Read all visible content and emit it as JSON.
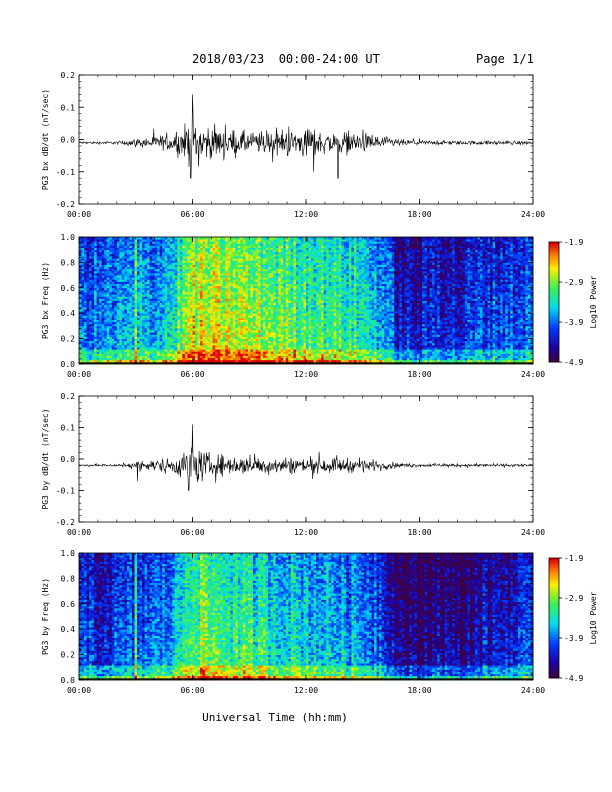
{
  "header": {
    "title": "2018/03/23  00:00-24:00 UT",
    "page": "Page 1/1"
  },
  "xlabel": "Universal Time (hh:mm)",
  "chart_data": [
    {
      "type": "line",
      "ylabel": "PG3 bx dB/dt (nT/sec)",
      "xlim": [
        0,
        24
      ],
      "ylim": [
        -0.2,
        0.2
      ],
      "x_ticks": [
        "00:00",
        "06:00",
        "12:00",
        "18:00",
        "24:00"
      ],
      "y_ticks": [
        "-0.2",
        "-0.1",
        "0.0",
        "0.1",
        "0.2"
      ],
      "baseline": -0.01,
      "envelope": {
        "hours": [
          0,
          2,
          3,
          4,
          5,
          5.5,
          6,
          7,
          8,
          9,
          10,
          11,
          12,
          13,
          14,
          15,
          16,
          17,
          18,
          20,
          22,
          24
        ],
        "amplitude": [
          0.006,
          0.007,
          0.018,
          0.03,
          0.04,
          0.07,
          0.11,
          0.07,
          0.06,
          0.05,
          0.055,
          0.06,
          0.07,
          0.05,
          0.05,
          0.045,
          0.03,
          0.015,
          0.01,
          0.009,
          0.009,
          0.009
        ]
      },
      "peaks": [
        {
          "x": 6.0,
          "y": 0.14
        },
        {
          "x": 5.9,
          "y": -0.12
        },
        {
          "x": 12.4,
          "y": -0.1
        },
        {
          "x": 13.7,
          "y": -0.12
        }
      ]
    },
    {
      "type": "heatmap",
      "ylabel": "PG3 bx Freq (Hz)",
      "xlim": [
        0,
        24
      ],
      "ylim": [
        0,
        1
      ],
      "x_ticks": [
        "00:00",
        "06:00",
        "12:00",
        "18:00",
        "24:00"
      ],
      "y_ticks": [
        "0.0",
        "0.2",
        "0.4",
        "0.6",
        "0.8",
        "1.0"
      ],
      "colorbar": {
        "label": "Log10 Power",
        "range": [
          -4.9,
          -1.9
        ],
        "ticks": [
          "-1.9",
          "-2.9",
          "-3.9",
          "-4.9"
        ]
      },
      "activity": {
        "hours": [
          0,
          2,
          3,
          4,
          5,
          6,
          8,
          10,
          12,
          14,
          15,
          16,
          17,
          18,
          19,
          20,
          21,
          22,
          24
        ],
        "level": [
          0.35,
          0.4,
          0.45,
          0.45,
          0.55,
          0.8,
          0.75,
          0.7,
          0.65,
          0.6,
          0.55,
          0.45,
          0.22,
          0.2,
          0.3,
          0.22,
          0.3,
          0.32,
          0.35
        ]
      }
    },
    {
      "type": "line",
      "ylabel": "PG3 by dB/dt (nT/sec)",
      "xlim": [
        0,
        24
      ],
      "ylim": [
        -0.2,
        0.2
      ],
      "x_ticks": [
        "00:00",
        "06:00",
        "12:00",
        "18:00",
        "24:00"
      ],
      "y_ticks": [
        "-0.2",
        "-0.1",
        "0.0",
        "0.1",
        "0.2"
      ],
      "baseline": -0.02,
      "envelope": {
        "hours": [
          0,
          2,
          3,
          4,
          5,
          5.5,
          6,
          7,
          8,
          9,
          10,
          11,
          12,
          13,
          14,
          15,
          16,
          17,
          18,
          20,
          22,
          24
        ],
        "amplitude": [
          0.005,
          0.006,
          0.02,
          0.03,
          0.04,
          0.06,
          0.09,
          0.055,
          0.045,
          0.04,
          0.04,
          0.04,
          0.035,
          0.035,
          0.035,
          0.03,
          0.02,
          0.01,
          0.008,
          0.007,
          0.007,
          0.007
        ]
      },
      "peaks": [
        {
          "x": 6.0,
          "y": 0.11
        },
        {
          "x": 5.8,
          "y": -0.1
        },
        {
          "x": 3.1,
          "y": -0.07
        }
      ]
    },
    {
      "type": "heatmap",
      "ylabel": "PG3 by Freq (Hz)",
      "xlim": [
        0,
        24
      ],
      "ylim": [
        0,
        1
      ],
      "x_ticks": [
        "00:00",
        "06:00",
        "12:00",
        "18:00",
        "24:00"
      ],
      "y_ticks": [
        "0.0",
        "0.2",
        "0.4",
        "0.6",
        "0.8",
        "1.0"
      ],
      "colorbar": {
        "label": "Log10 Power",
        "range": [
          -4.9,
          -1.9
        ],
        "ticks": [
          "-1.9",
          "-2.9",
          "-3.9",
          "-4.9"
        ]
      },
      "activity": {
        "hours": [
          0,
          2,
          3,
          4,
          5,
          6,
          8,
          10,
          12,
          14,
          15,
          16,
          17,
          18,
          19,
          20,
          21,
          22,
          24
        ],
        "level": [
          0.25,
          0.28,
          0.35,
          0.35,
          0.45,
          0.7,
          0.62,
          0.55,
          0.5,
          0.45,
          0.42,
          0.35,
          0.12,
          0.1,
          0.18,
          0.1,
          0.2,
          0.22,
          0.25
        ]
      }
    }
  ]
}
